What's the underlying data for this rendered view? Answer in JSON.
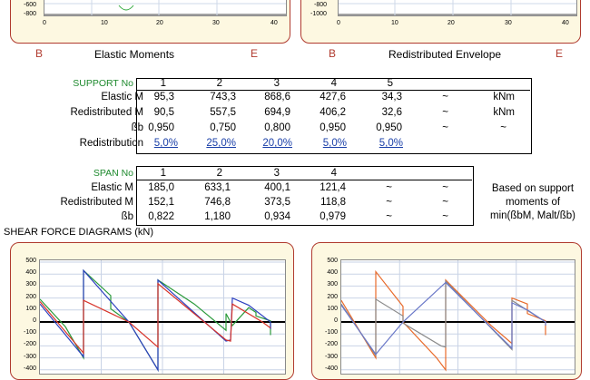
{
  "top_panels": {
    "left": {
      "y_ticks": [
        "-600",
        "-800"
      ],
      "x_ticks": [
        "0",
        "10",
        "20",
        "30",
        "40"
      ],
      "left_end": "B",
      "right_end": "E",
      "caption": "Elastic Moments"
    },
    "right": {
      "y_ticks": [
        "-800",
        "-1000"
      ],
      "x_ticks": [
        "0",
        "10",
        "20",
        "30",
        "40"
      ],
      "left_end": "B",
      "right_end": "E",
      "caption": "Redistributed Envelope"
    }
  },
  "support_table": {
    "header_label": "SUPPORT No",
    "columns": [
      "1",
      "2",
      "3",
      "4",
      "5"
    ],
    "rows": [
      {
        "label": "Elastic M",
        "values": [
          "95,3",
          "743,3",
          "868,6",
          "427,6",
          "34,3"
        ],
        "tilde": "~",
        "unit": "kNm"
      },
      {
        "label": "Redistributed M",
        "values": [
          "90,5",
          "557,5",
          "694,9",
          "406,2",
          "32,6"
        ],
        "tilde": "~",
        "unit": "kNm"
      },
      {
        "label": "ßb",
        "values": [
          "0,950",
          "0,750",
          "0,800",
          "0,950",
          "0,950"
        ],
        "tilde": "~",
        "unit": "~"
      }
    ],
    "redistribution": {
      "label": "Redistribution",
      "values": [
        "5,0%",
        "25,0%",
        "20,0%",
        "5,0%",
        "5,0%"
      ]
    }
  },
  "span_table": {
    "header_label": "SPAN No",
    "columns": [
      "1",
      "2",
      "3",
      "4"
    ],
    "rows": [
      {
        "label": "Elastic M",
        "values": [
          "185,0",
          "633,1",
          "400,1",
          "121,4"
        ],
        "t1": "~",
        "t2": "~"
      },
      {
        "label": "Redistributed M",
        "values": [
          "152,1",
          "746,8",
          "373,5",
          "118,8"
        ],
        "t1": "~",
        "t2": "~"
      },
      {
        "label": "ßb",
        "values": [
          "0,822",
          "1,180",
          "0,934",
          "0,979"
        ],
        "t1": "~",
        "t2": "~"
      }
    ],
    "note_lines": [
      "Based on support",
      "moments of",
      "min(ßbM, Malt/ßb)"
    ]
  },
  "shear_title": "SHEAR FORCE DIAGRAMS (kN)",
  "shear_panels": {
    "y_ticks": [
      "500",
      "400",
      "300",
      "200",
      "100",
      "0",
      "-100",
      "-200",
      "-300",
      "-400"
    ]
  },
  "colors": {
    "accent_red": "#b03a2e",
    "panel_bg": "#fdf8e1",
    "link_blue": "#1a3fa8",
    "header_green": "#1e8a2e"
  }
}
